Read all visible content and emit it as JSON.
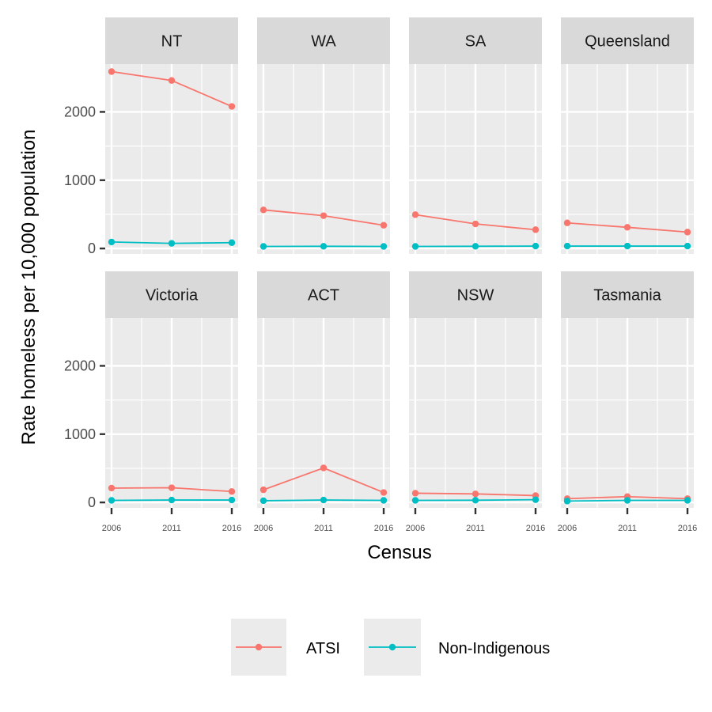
{
  "chart_data": {
    "type": "line",
    "layout": "facet-grid",
    "xlabel": "Census",
    "ylabel": "Rate homeless per 10,000 population",
    "x": [
      2006,
      2011,
      2016
    ],
    "x_tick_labels": [
      "2006",
      "2011",
      "2016"
    ],
    "y_ticks": [
      0,
      1000,
      2000
    ],
    "y_tick_labels": [
      "0",
      "1000",
      "2000"
    ],
    "ylim": [
      -80,
      2700
    ],
    "grid": true,
    "legend_position": "bottom",
    "series_colors": {
      "ATSI": "#F8766D",
      "Non-Indigenous": "#00BFC4"
    },
    "legend": [
      {
        "label": "ATSI",
        "color": "#F8766D"
      },
      {
        "label": "Non-Indigenous",
        "color": "#00BFC4"
      }
    ],
    "panels": [
      {
        "label": "NT",
        "series": [
          {
            "name": "ATSI",
            "values": [
              2590,
              2460,
              2080
            ]
          },
          {
            "name": "Non-Indigenous",
            "values": [
              95,
              75,
              85
            ]
          }
        ]
      },
      {
        "label": "WA",
        "series": [
          {
            "name": "ATSI",
            "values": [
              565,
              480,
              340
            ]
          },
          {
            "name": "Non-Indigenous",
            "values": [
              30,
              32,
              30
            ]
          }
        ]
      },
      {
        "label": "SA",
        "series": [
          {
            "name": "ATSI",
            "values": [
              495,
              360,
              275
            ]
          },
          {
            "name": "Non-Indigenous",
            "values": [
              30,
              32,
              35
            ]
          }
        ]
      },
      {
        "label": "Queensland",
        "series": [
          {
            "name": "ATSI",
            "values": [
              375,
              310,
              240
            ]
          },
          {
            "name": "Non-Indigenous",
            "values": [
              35,
              35,
              35
            ]
          }
        ]
      },
      {
        "label": "Victoria",
        "series": [
          {
            "name": "ATSI",
            "values": [
              210,
              215,
              160
            ]
          },
          {
            "name": "Non-Indigenous",
            "values": [
              30,
              35,
              35
            ]
          }
        ]
      },
      {
        "label": "ACT",
        "series": [
          {
            "name": "ATSI",
            "values": [
              185,
              505,
              145
            ]
          },
          {
            "name": "Non-Indigenous",
            "values": [
              25,
              35,
              30
            ]
          }
        ]
      },
      {
        "label": "NSW",
        "series": [
          {
            "name": "ATSI",
            "values": [
              135,
              125,
              100
            ]
          },
          {
            "name": "Non-Indigenous",
            "values": [
              30,
              32,
              40
            ]
          }
        ]
      },
      {
        "label": "Tasmania",
        "series": [
          {
            "name": "ATSI",
            "values": [
              55,
              85,
              55
            ]
          },
          {
            "name": "Non-Indigenous",
            "values": [
              20,
              30,
              30
            ]
          }
        ]
      }
    ]
  }
}
